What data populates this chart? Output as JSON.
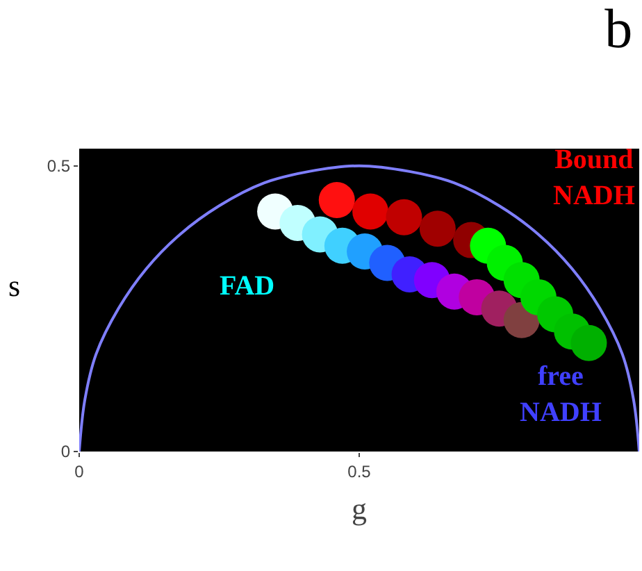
{
  "chart_data": {
    "type": "scatter",
    "title": "b",
    "xlabel": "g",
    "ylabel": "s",
    "xlim": [
      0,
      1
    ],
    "ylim": [
      0,
      0.53
    ],
    "xticks": [
      0,
      0.5
    ],
    "yticks": [
      0,
      0.5
    ],
    "grid": false,
    "series": [
      {
        "type": "line",
        "color": "#7f7fff",
        "x": [
          0,
          0.01,
          0.03,
          0.07,
          0.12,
          0.18,
          0.25,
          0.33,
          0.41,
          0.5,
          0.59,
          0.67,
          0.75,
          0.82,
          0.88,
          0.93,
          0.97,
          0.99,
          1
        ],
        "values": [
          0,
          0.09,
          0.17,
          0.25,
          0.32,
          0.38,
          0.43,
          0.47,
          0.49,
          0.5,
          0.49,
          0.47,
          0.43,
          0.38,
          0.32,
          0.25,
          0.17,
          0.09,
          0
        ]
      },
      {
        "x": [
          0.46,
          0.52,
          0.58,
          0.64,
          0.7
        ],
        "values": [
          0.44,
          0.42,
          0.41,
          0.39,
          0.37
        ],
        "colors": [
          "#ff1010",
          "#e00000",
          "#c00000",
          "#a00000",
          "#900000"
        ]
      },
      {
        "x": [
          0.35,
          0.39,
          0.43,
          0.47,
          0.51,
          0.55,
          0.59,
          0.63,
          0.67,
          0.71,
          0.75,
          0.79
        ],
        "values": [
          0.42,
          0.4,
          0.38,
          0.36,
          0.35,
          0.33,
          0.31,
          0.3,
          0.28,
          0.27,
          0.25,
          0.23
        ],
        "colors": [
          "#f0ffff",
          "#c0ffff",
          "#80f0ff",
          "#40d0ff",
          "#20a0ff",
          "#2060ff",
          "#4020ff",
          "#8000ff",
          "#b000e0",
          "#c000a0",
          "#a02060",
          "#804040"
        ]
      },
      {
        "x": [
          0.73,
          0.76,
          0.79,
          0.82,
          0.85,
          0.88,
          0.91
        ],
        "values": [
          0.36,
          0.33,
          0.3,
          0.27,
          0.24,
          0.21,
          0.19
        ],
        "colors": [
          "#00ff00",
          "#00f000",
          "#00e000",
          "#00d800",
          "#00c800",
          "#00c000",
          "#00b000"
        ]
      }
    ],
    "annotations": [
      "FAD",
      "Bound NADH",
      "free NADH"
    ]
  }
}
